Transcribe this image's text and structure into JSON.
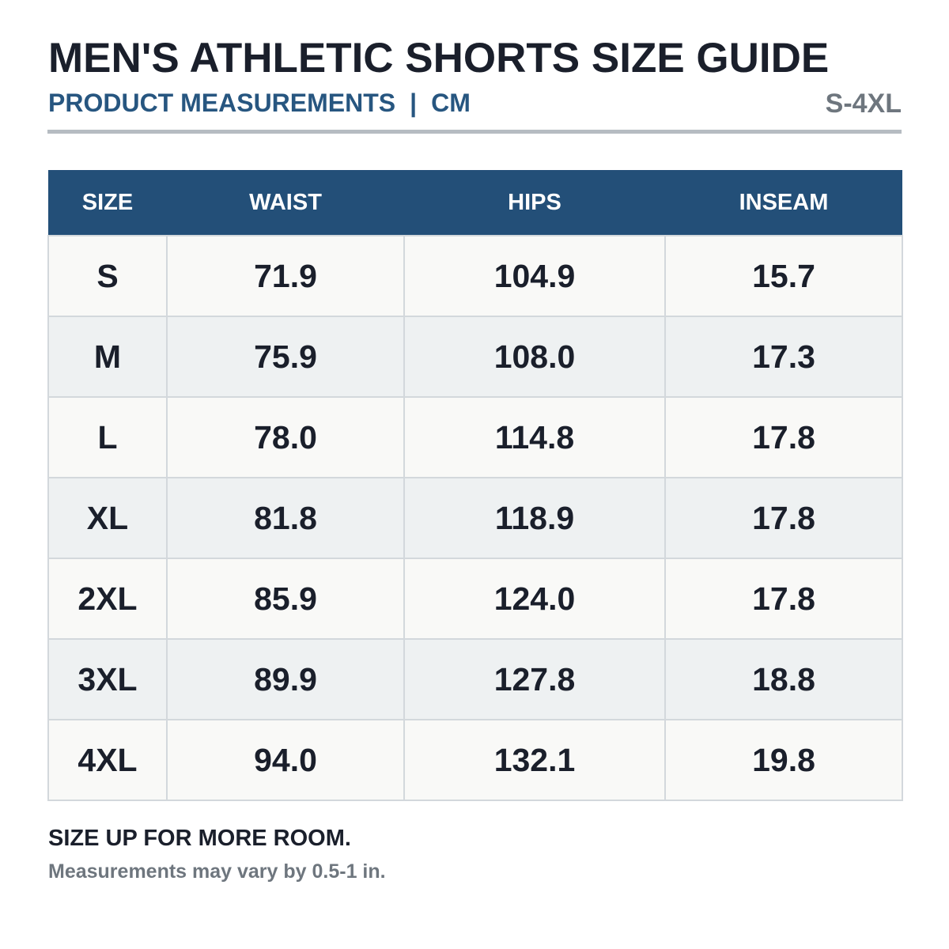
{
  "header": {
    "title": "MEN'S ATHLETIC SHORTS SIZE GUIDE",
    "subtitle_left": "PRODUCT MEASUREMENTS",
    "subtitle_separator": "|",
    "subtitle_unit": "CM",
    "size_range": "S-4XL"
  },
  "table": {
    "columns": [
      "SIZE",
      "WAIST",
      "HIPS",
      "INSEAM"
    ],
    "rows": [
      {
        "size": "S",
        "waist": "71.9",
        "hips": "104.9",
        "inseam": "15.7"
      },
      {
        "size": "M",
        "waist": "75.9",
        "hips": "108.0",
        "inseam": "17.3"
      },
      {
        "size": "L",
        "waist": "78.0",
        "hips": "114.8",
        "inseam": "17.8"
      },
      {
        "size": "XL",
        "waist": "81.8",
        "hips": "118.9",
        "inseam": "17.8"
      },
      {
        "size": "2XL",
        "waist": "85.9",
        "hips": "124.0",
        "inseam": "17.8"
      },
      {
        "size": "3XL",
        "waist": "89.9",
        "hips": "127.8",
        "inseam": "18.8"
      },
      {
        "size": "4XL",
        "waist": "94.0",
        "hips": "132.1",
        "inseam": "19.8"
      }
    ]
  },
  "footer": {
    "note": "SIZE UP FOR MORE ROOM.",
    "disclaimer": "Measurements may vary by 0.5-1 in."
  },
  "colors": {
    "header_fill": "#234f78",
    "subtitle_text": "#275680",
    "muted_text": "#6e767e",
    "row_odd": "#f9f9f7",
    "row_even": "#eef1f2",
    "grid_line": "#d3d8dc"
  }
}
